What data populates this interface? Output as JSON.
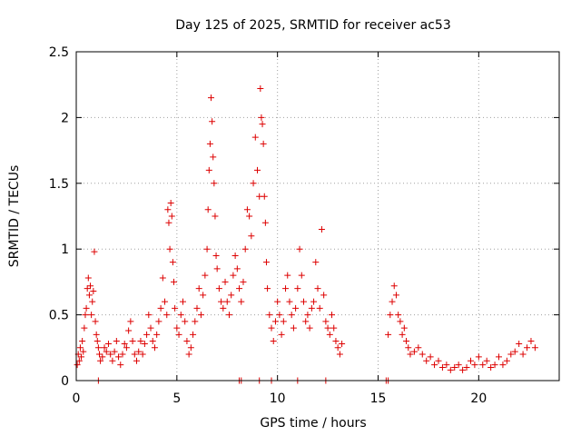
{
  "chart_data": {
    "type": "scatter",
    "title": "Day 125 of 2025, SRMTID for receiver ac53",
    "xlabel": "GPS time / hours",
    "ylabel": "SRMTID / TECUs",
    "xlim": [
      0,
      24
    ],
    "ylim": [
      0,
      2.5
    ],
    "xticks": [
      0,
      5,
      10,
      15,
      20
    ],
    "xtick_labels": [
      "0",
      "5",
      "10",
      "15",
      "20"
    ],
    "yticks": [
      0,
      0.5,
      1,
      1.5,
      2,
      2.5
    ],
    "ytick_labels": [
      "0",
      "0.5",
      "1",
      "1.5",
      "2",
      "2.5"
    ],
    "grid": true,
    "marker": "+",
    "marker_color": "#dd0000",
    "series": [
      {
        "name": "SRMTID",
        "points": [
          [
            0.05,
            0.12
          ],
          [
            0.1,
            0.2
          ],
          [
            0.15,
            0.15
          ],
          [
            0.2,
            0.25
          ],
          [
            0.25,
            0.18
          ],
          [
            0.3,
            0.3
          ],
          [
            0.35,
            0.22
          ],
          [
            0.4,
            0.4
          ],
          [
            0.45,
            0.5
          ],
          [
            0.5,
            0.55
          ],
          [
            0.55,
            0.7
          ],
          [
            0.6,
            0.78
          ],
          [
            0.65,
            0.65
          ],
          [
            0.7,
            0.72
          ],
          [
            0.75,
            0.5
          ],
          [
            0.8,
            0.6
          ],
          [
            0.85,
            0.68
          ],
          [
            0.9,
            0.98
          ],
          [
            0.95,
            0.45
          ],
          [
            1.0,
            0.35
          ],
          [
            1.05,
            0.3
          ],
          [
            1.1,
            0.25
          ],
          [
            1.15,
            0.2
          ],
          [
            1.2,
            0.15
          ],
          [
            1.3,
            0.18
          ],
          [
            1.4,
            0.25
          ],
          [
            1.5,
            0.22
          ],
          [
            1.6,
            0.28
          ],
          [
            1.7,
            0.2
          ],
          [
            1.8,
            0.15
          ],
          [
            1.9,
            0.22
          ],
          [
            2.0,
            0.3
          ],
          [
            2.1,
            0.18
          ],
          [
            2.2,
            0.12
          ],
          [
            2.3,
            0.2
          ],
          [
            2.4,
            0.28
          ],
          [
            2.5,
            0.25
          ],
          [
            2.6,
            0.38
          ],
          [
            2.7,
            0.45
          ],
          [
            2.8,
            0.3
          ],
          [
            2.9,
            0.2
          ],
          [
            3.0,
            0.15
          ],
          [
            3.1,
            0.22
          ],
          [
            3.2,
            0.3
          ],
          [
            3.3,
            0.2
          ],
          [
            3.4,
            0.28
          ],
          [
            3.5,
            0.35
          ],
          [
            3.6,
            0.5
          ],
          [
            3.7,
            0.4
          ],
          [
            3.8,
            0.3
          ],
          [
            3.9,
            0.25
          ],
          [
            4.0,
            0.35
          ],
          [
            4.1,
            0.45
          ],
          [
            4.2,
            0.55
          ],
          [
            4.3,
            0.78
          ],
          [
            4.4,
            0.6
          ],
          [
            4.5,
            0.5
          ],
          [
            4.55,
            1.3
          ],
          [
            4.6,
            1.2
          ],
          [
            4.65,
            1.0
          ],
          [
            4.7,
            1.35
          ],
          [
            4.75,
            1.25
          ],
          [
            4.8,
            0.9
          ],
          [
            4.85,
            0.75
          ],
          [
            4.9,
            0.55
          ],
          [
            5.0,
            0.4
          ],
          [
            5.1,
            0.35
          ],
          [
            5.2,
            0.5
          ],
          [
            5.3,
            0.6
          ],
          [
            5.4,
            0.45
          ],
          [
            5.5,
            0.3
          ],
          [
            5.6,
            0.2
          ],
          [
            5.7,
            0.25
          ],
          [
            5.8,
            0.35
          ],
          [
            5.9,
            0.45
          ],
          [
            6.0,
            0.55
          ],
          [
            6.1,
            0.7
          ],
          [
            6.2,
            0.5
          ],
          [
            6.3,
            0.65
          ],
          [
            6.4,
            0.8
          ],
          [
            6.5,
            1.0
          ],
          [
            6.55,
            1.3
          ],
          [
            6.6,
            1.6
          ],
          [
            6.65,
            1.8
          ],
          [
            6.7,
            2.15
          ],
          [
            6.75,
            1.97
          ],
          [
            6.8,
            1.7
          ],
          [
            6.85,
            1.5
          ],
          [
            6.9,
            1.25
          ],
          [
            6.95,
            0.95
          ],
          [
            7.0,
            0.85
          ],
          [
            7.1,
            0.7
          ],
          [
            7.2,
            0.6
          ],
          [
            7.3,
            0.55
          ],
          [
            7.4,
            0.75
          ],
          [
            7.5,
            0.6
          ],
          [
            7.6,
            0.5
          ],
          [
            7.7,
            0.65
          ],
          [
            7.8,
            0.8
          ],
          [
            7.9,
            0.95
          ],
          [
            8.0,
            0.85
          ],
          [
            8.1,
            0.7
          ],
          [
            8.2,
            0.6
          ],
          [
            8.3,
            0.75
          ],
          [
            8.4,
            1.0
          ],
          [
            8.5,
            1.3
          ],
          [
            8.6,
            1.25
          ],
          [
            8.7,
            1.1
          ],
          [
            8.8,
            1.5
          ],
          [
            8.9,
            1.85
          ],
          [
            9.0,
            1.6
          ],
          [
            9.1,
            1.4
          ],
          [
            9.15,
            2.22
          ],
          [
            9.2,
            2.0
          ],
          [
            9.25,
            1.95
          ],
          [
            9.3,
            1.8
          ],
          [
            9.35,
            1.4
          ],
          [
            9.4,
            1.2
          ],
          [
            9.45,
            0.9
          ],
          [
            9.5,
            0.7
          ],
          [
            9.6,
            0.5
          ],
          [
            9.7,
            0.4
          ],
          [
            9.8,
            0.3
          ],
          [
            9.9,
            0.45
          ],
          [
            10.0,
            0.6
          ],
          [
            10.1,
            0.5
          ],
          [
            10.2,
            0.35
          ],
          [
            10.3,
            0.45
          ],
          [
            10.4,
            0.7
          ],
          [
            10.5,
            0.8
          ],
          [
            10.6,
            0.6
          ],
          [
            10.7,
            0.5
          ],
          [
            10.8,
            0.4
          ],
          [
            10.9,
            0.55
          ],
          [
            11.0,
            0.7
          ],
          [
            11.1,
            1.0
          ],
          [
            11.2,
            0.8
          ],
          [
            11.3,
            0.6
          ],
          [
            11.4,
            0.45
          ],
          [
            11.5,
            0.5
          ],
          [
            11.6,
            0.4
          ],
          [
            11.7,
            0.55
          ],
          [
            11.8,
            0.6
          ],
          [
            11.9,
            0.9
          ],
          [
            12.0,
            0.7
          ],
          [
            12.1,
            0.55
          ],
          [
            12.2,
            1.15
          ],
          [
            12.3,
            0.65
          ],
          [
            12.4,
            0.45
          ],
          [
            12.5,
            0.4
          ],
          [
            12.6,
            0.35
          ],
          [
            12.7,
            0.5
          ],
          [
            12.8,
            0.4
          ],
          [
            12.9,
            0.3
          ],
          [
            13.0,
            0.25
          ],
          [
            13.1,
            0.2
          ],
          [
            13.2,
            0.28
          ],
          [
            15.5,
            0.35
          ],
          [
            15.6,
            0.5
          ],
          [
            15.7,
            0.6
          ],
          [
            15.8,
            0.72
          ],
          [
            15.9,
            0.65
          ],
          [
            16.0,
            0.5
          ],
          [
            16.1,
            0.45
          ],
          [
            16.2,
            0.35
          ],
          [
            16.3,
            0.4
          ],
          [
            16.4,
            0.3
          ],
          [
            16.5,
            0.25
          ],
          [
            16.6,
            0.2
          ],
          [
            16.8,
            0.22
          ],
          [
            17.0,
            0.25
          ],
          [
            17.2,
            0.2
          ],
          [
            17.4,
            0.15
          ],
          [
            17.6,
            0.18
          ],
          [
            17.8,
            0.12
          ],
          [
            18.0,
            0.15
          ],
          [
            18.2,
            0.1
          ],
          [
            18.4,
            0.12
          ],
          [
            18.6,
            0.08
          ],
          [
            18.8,
            0.1
          ],
          [
            19.0,
            0.12
          ],
          [
            19.2,
            0.08
          ],
          [
            19.4,
            0.1
          ],
          [
            19.6,
            0.15
          ],
          [
            19.8,
            0.12
          ],
          [
            20.0,
            0.18
          ],
          [
            20.2,
            0.12
          ],
          [
            20.4,
            0.15
          ],
          [
            20.6,
            0.1
          ],
          [
            20.8,
            0.12
          ],
          [
            21.0,
            0.18
          ],
          [
            21.2,
            0.12
          ],
          [
            21.4,
            0.15
          ],
          [
            21.6,
            0.2
          ],
          [
            21.8,
            0.22
          ],
          [
            22.0,
            0.28
          ],
          [
            22.2,
            0.2
          ],
          [
            22.4,
            0.25
          ],
          [
            22.6,
            0.3
          ],
          [
            22.8,
            0.25
          ],
          [
            1.1,
            0.0
          ],
          [
            8.1,
            0.0
          ],
          [
            8.2,
            0.0
          ],
          [
            9.1,
            0.0
          ],
          [
            9.7,
            0.0
          ],
          [
            11.0,
            0.0
          ],
          [
            12.4,
            0.0
          ],
          [
            15.4,
            0.0
          ],
          [
            15.5,
            0.0
          ]
        ]
      }
    ]
  }
}
